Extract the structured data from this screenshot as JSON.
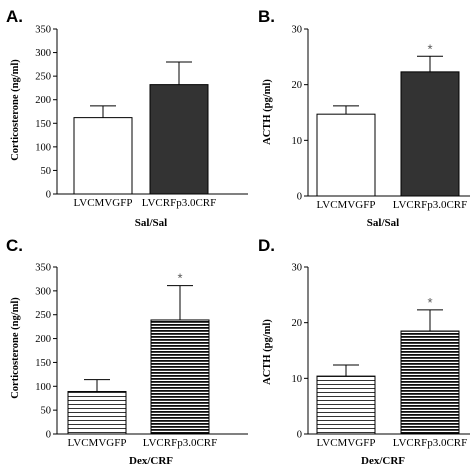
{
  "chart_data": [
    {
      "type": "bar",
      "panel": "A.",
      "categories": [
        "LVCMVGFP",
        "LVCRFp3.0CRF"
      ],
      "values": [
        162,
        232
      ],
      "errors": [
        25,
        48
      ],
      "annotations": [
        "",
        ""
      ],
      "fills": [
        "white",
        "dark"
      ],
      "xlabel": "Sal/Sal",
      "ylabel": "Corticosterone (ng/ml)",
      "ylim": [
        0,
        350
      ],
      "yticks": [
        "0",
        "50",
        "100",
        "150",
        "200",
        "250",
        "300",
        "350"
      ]
    },
    {
      "type": "bar",
      "panel": "B.",
      "categories": [
        "LVCMVGFP",
        "LVCRFp3.0CRF"
      ],
      "values": [
        14.7,
        22.3
      ],
      "errors": [
        1.5,
        2.8
      ],
      "annotations": [
        "",
        "*"
      ],
      "fills": [
        "white",
        "dark"
      ],
      "xlabel": "Sal/Sal",
      "ylabel": "ACTH (pg/ml)",
      "ylim": [
        0,
        30
      ],
      "yticks": [
        "0",
        "10",
        "20",
        "30"
      ]
    },
    {
      "type": "bar",
      "panel": "C.",
      "categories": [
        "LVCMVGFP",
        "LVCRFp3.0CRF"
      ],
      "values": [
        89,
        239
      ],
      "errors": [
        25,
        72
      ],
      "annotations": [
        "",
        "*"
      ],
      "fills": [
        "hatch-light",
        "hatch-dark"
      ],
      "xlabel": "Dex/CRF",
      "ylabel": "Corticosterone (ng/ml)",
      "ylim": [
        0,
        350
      ],
      "yticks": [
        "0",
        "50",
        "100",
        "150",
        "200",
        "250",
        "300",
        "350"
      ]
    },
    {
      "type": "bar",
      "panel": "D.",
      "categories": [
        "LVCMVGFP",
        "LVCRFp3.0CRF"
      ],
      "values": [
        10.4,
        18.5
      ],
      "errors": [
        2.0,
        3.8
      ],
      "annotations": [
        "",
        "*"
      ],
      "fills": [
        "hatch-light",
        "hatch-dark"
      ],
      "xlabel": "Dex/CRF",
      "ylabel": "ACTH (pg/ml)",
      "ylim": [
        0,
        30
      ],
      "yticks": [
        "0",
        "10",
        "20",
        "30"
      ]
    }
  ],
  "colors": {
    "dark_bar": "#333333",
    "hatch_line": "#000000",
    "axis": "#000000",
    "annotation": "#555555"
  }
}
